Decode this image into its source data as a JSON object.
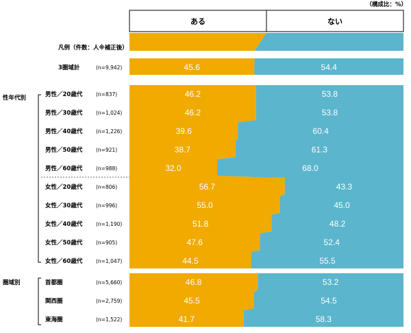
{
  "chart_data": {
    "type": "bar",
    "orientation": "horizontal-stacked-100",
    "unit_note": "（構成比：%）",
    "legend": {
      "label": "凡例（件数：人※補正後）",
      "series_labels": [
        "ある",
        "ない"
      ]
    },
    "colors": {
      "aru": "#F0AA00",
      "nai": "#5BB5CC"
    },
    "rows": [
      {
        "label": "3圏域計",
        "n": "(n=9,942)",
        "aru": 45.6,
        "nai": 54.4
      },
      {
        "label": "男性／20歳代",
        "n": "(n=837)",
        "aru": 46.2,
        "nai": 53.8
      },
      {
        "label": "男性／30歳代",
        "n": "(n=1,024)",
        "aru": 46.2,
        "nai": 53.8
      },
      {
        "label": "男性／40歳代",
        "n": "(n=1,226)",
        "aru": 39.6,
        "nai": 60.4
      },
      {
        "label": "男性／50歳代",
        "n": "(n=921)",
        "aru": 38.7,
        "nai": 61.3
      },
      {
        "label": "男性／60歳代",
        "n": "(n=988)",
        "aru": 32.0,
        "nai": 68.0
      },
      {
        "label": "女性／20歳代",
        "n": "(n=806)",
        "aru": 56.7,
        "nai": 43.3
      },
      {
        "label": "女性／30歳代",
        "n": "(n=996)",
        "aru": 55.0,
        "nai": 45.0
      },
      {
        "label": "女性／40歳代",
        "n": "(n=1,190)",
        "aru": 51.8,
        "nai": 48.2
      },
      {
        "label": "女性／50歳代",
        "n": "(n=905)",
        "aru": 47.6,
        "nai": 52.4
      },
      {
        "label": "女性／60歳代",
        "n": "(n=1,047)",
        "aru": 44.5,
        "nai": 55.5
      },
      {
        "label": "首都圏",
        "n": "(n=5,660)",
        "aru": 46.8,
        "nai": 53.2
      },
      {
        "label": "関西圏",
        "n": "(n=2,759)",
        "aru": 45.5,
        "nai": 54.5
      },
      {
        "label": "東海圏",
        "n": "(n=1,522)",
        "aru": 41.7,
        "nai": 58.3
      }
    ],
    "groups": [
      {
        "label": "性年代別"
      },
      {
        "label": "圏域別"
      }
    ]
  }
}
